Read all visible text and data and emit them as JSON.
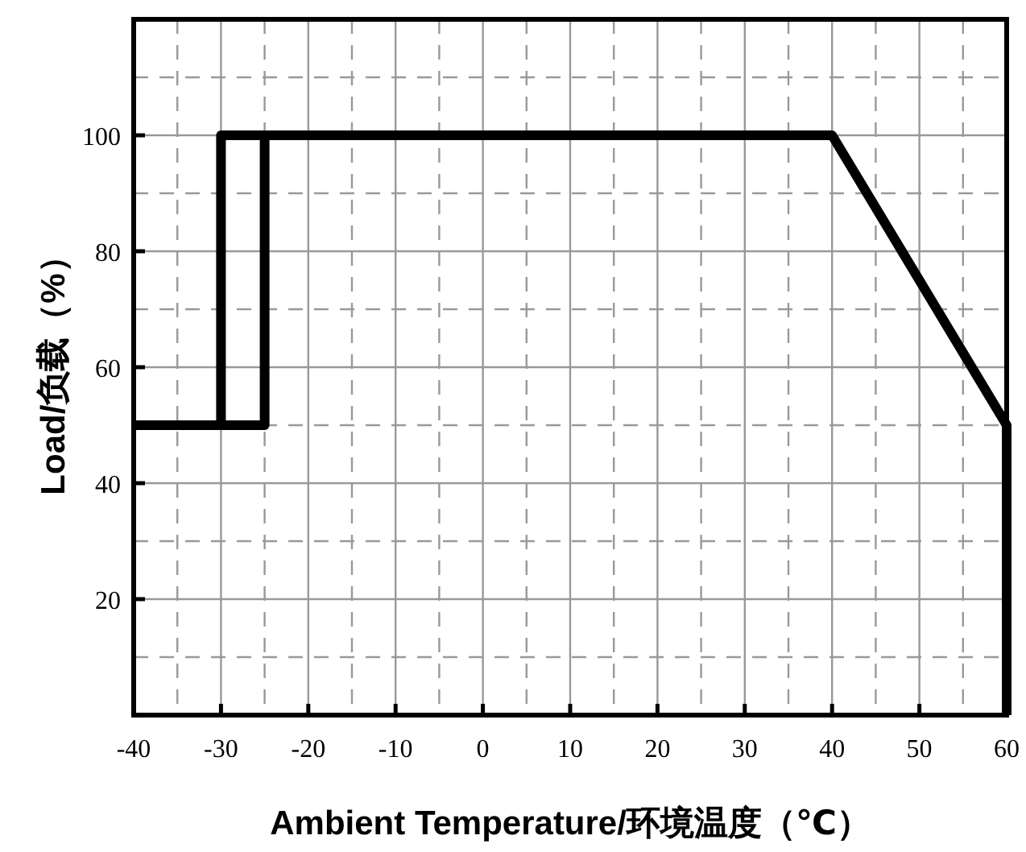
{
  "chart_data": {
    "type": "line",
    "xlabel": "Ambient Temperature/环境温度（℃）",
    "ylabel": "Load/负载（%）",
    "xlim": [
      -40,
      60
    ],
    "ylim": [
      0,
      120
    ],
    "xticks": [
      -40,
      -30,
      -20,
      -10,
      0,
      10,
      20,
      30,
      40,
      50,
      60
    ],
    "yticks": [
      20,
      40,
      60,
      80,
      100
    ],
    "grid": true,
    "line_style": "solid",
    "marker": "none",
    "series": [
      {
        "color": "#000000",
        "x": [
          -40,
          -30,
          -30,
          40,
          60,
          60
        ],
        "values": [
          50,
          50,
          100,
          100,
          50,
          0
        ]
      },
      {
        "color": "#000000",
        "x": [
          -30,
          -25,
          -25
        ],
        "values": [
          50,
          50,
          100
        ]
      }
    ]
  }
}
